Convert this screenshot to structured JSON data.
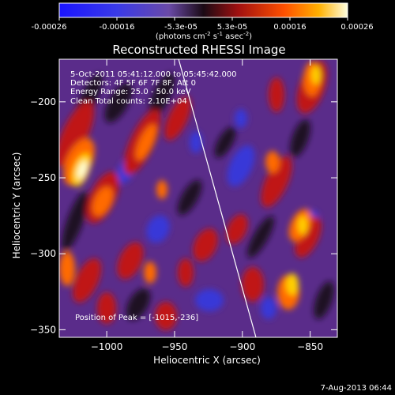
{
  "colorbar": {
    "ticks": [
      "-0.00026",
      "-0.00016",
      "-5.3e-05",
      "5.3e-05",
      "0.00016",
      "0.00026"
    ],
    "units_main": "(photons cm",
    "units_sup1": "-2",
    "units_mid1": " s",
    "units_sup2": "-1",
    "units_mid2": " asec",
    "units_sup3": "-2",
    "units_end": ")"
  },
  "chart_data": {
    "type": "heatmap",
    "title": "Reconstructed RHESSI Image",
    "xlabel": "Heliocentric X (arcsec)",
    "ylabel": "Heliocentric Y (arcsec)",
    "x_ticks": [
      "-1000",
      "-950",
      "-900",
      "-850"
    ],
    "y_ticks": [
      "-200",
      "-250",
      "-300",
      "-350"
    ],
    "xlim": [
      -1035,
      -830
    ],
    "ylim": [
      -355,
      -172
    ],
    "info_lines": [
      "5-Oct-2011 05:41:12.000 to 05:45:42.000",
      "Detectors: 4F 5F 6F 7F 8F, Att 0",
      "Energy Range: 25.0 - 50.0 keV",
      "Clean     Total counts: 2.10E+04"
    ],
    "peak_text": "Position of Peak = [-1015,-236]",
    "peak_position": [
      -1015,
      -236
    ],
    "limb_line": [
      [
        -947,
        -172
      ],
      [
        -890,
        -355
      ]
    ]
  },
  "timestamp": "7-Aug-2013 06:44"
}
